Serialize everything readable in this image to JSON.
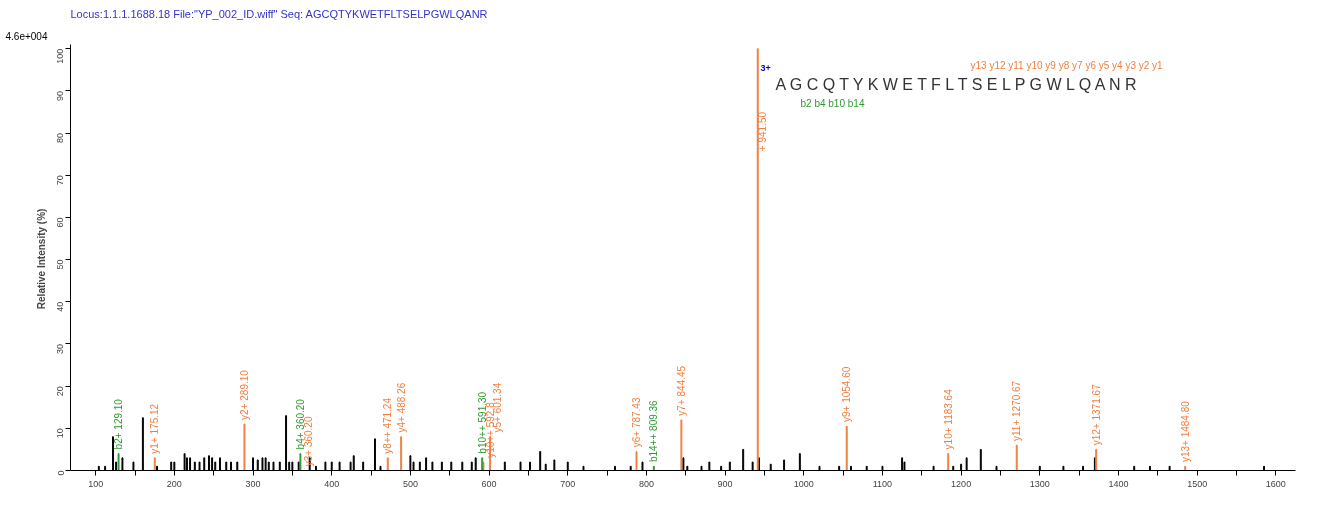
{
  "chart_data": {
    "type": "bar",
    "title": "Locus:1.1.1.1688.18 File:\"YP_002_ID.wiff\"   Seq: AGCQTYKWETFLTSELPGWLQANR",
    "ylabel": "Relative  Intensity (%)",
    "annotations": [
      "4.6e+004",
      "3+",
      "A G C Q T Y K W E T F L T S E L P G W L Q A N R",
      "y13 y12 y11 y10 y9 y8 y7 y6 y5 y4 y3 y2 y1",
      "b2 b4 b10 b14",
      {
        "text": "+ 941.50",
        "x": 941.5,
        "y": 85
      }
    ],
    "xlim": [
      68,
      1625
    ],
    "ylim": [
      0,
      101
    ],
    "xticks": [
      100,
      {
        "value": 150,
        "label": null
      },
      200,
      {
        "value": 250,
        "label": null
      },
      300,
      {
        "value": 350,
        "label": null
      },
      400,
      {
        "value": 450,
        "label": null
      },
      500,
      {
        "value": 550,
        "label": null
      },
      600,
      {
        "value": 650,
        "label": null
      },
      700,
      {
        "value": 750,
        "label": null
      },
      800,
      {
        "value": 850,
        "label": null
      },
      900,
      {
        "value": 950,
        "label": null
      },
      1000,
      {
        "value": 1050,
        "label": null
      },
      1100,
      {
        "value": 1150,
        "label": null
      },
      1200,
      {
        "value": 1250,
        "label": null
      },
      1300,
      {
        "value": 1350,
        "label": null
      },
      1400,
      {
        "value": 1450,
        "label": null
      },
      1500,
      {
        "value": 1550,
        "label": null
      },
      1600
    ],
    "yticks": [
      0,
      10,
      20,
      30,
      40,
      50,
      60,
      70,
      80,
      90,
      100
    ],
    "grid": false,
    "series": [
      {
        "color": "#000000",
        "x": [
          104,
          112,
          122,
          126,
          134,
          148,
          160,
          178,
          196,
          200,
          213,
          216,
          220,
          226,
          232,
          238,
          244,
          248,
          252,
          258,
          266,
          272,
          280,
          300,
          306,
          312,
          316,
          320,
          326,
          334,
          342,
          346,
          350,
          358,
          372,
          380,
          392,
          400,
          410,
          424,
          428,
          440,
          455,
          462,
          500,
          504,
          512,
          520,
          528,
          540,
          552,
          566,
          578,
          583,
          620,
          640,
          652,
          665,
          672,
          683,
          700,
          720,
          760,
          780,
          795,
          847,
          852,
          870,
          880,
          895,
          906,
          923,
          935,
          943,
          958,
          975,
          995,
          1020,
          1045,
          1060,
          1080,
          1100,
          1125,
          1128,
          1165,
          1190,
          1200,
          1207,
          1225,
          1245,
          1300,
          1330,
          1355,
          1370,
          1420,
          1440,
          1465,
          1585
        ],
        "values": [
          1,
          1,
          8,
          2,
          3,
          2,
          12.5,
          1,
          2,
          2,
          4,
          3,
          3,
          2,
          2,
          3,
          3.5,
          3,
          2,
          3,
          2,
          2,
          2,
          3,
          2.5,
          3,
          3,
          2,
          2,
          2,
          13,
          2,
          2,
          2,
          3,
          1,
          2,
          2,
          2,
          2,
          3.5,
          2,
          7.5,
          1,
          3.5,
          2,
          2,
          3,
          2,
          2,
          2,
          2,
          2,
          3,
          2,
          2,
          2,
          4.5,
          1.5,
          2.5,
          2,
          1,
          1,
          1,
          2,
          3,
          1,
          1,
          2,
          1,
          2,
          5,
          2,
          3,
          1.5,
          2.5,
          4,
          1,
          1,
          1,
          1,
          1,
          3,
          2,
          1,
          1,
          1.5,
          3,
          5,
          1,
          1,
          1,
          1,
          3,
          1,
          1,
          1,
          1
        ]
      },
      {
        "color": "#f07f3f",
        "x": [
          175.12,
          289.1,
          360.2,
          471.24,
          488.26,
          592.8,
          601.34,
          787.43,
          844.45,
          941.5,
          1054.6,
          1183.64,
          1270.67,
          1371.67,
          1484.8
        ],
        "values": [
          3,
          11,
          null,
          3,
          8,
          2,
          8,
          4.5,
          12,
          100,
          10.5,
          4,
          6,
          5,
          1
        ],
        "value_labels": [
          "y1+ 175.12",
          "y2+ 289.10",
          "y3+ 360.20",
          "y8++ 471.24",
          "y4+ 488.26",
          "y10++ 592.8",
          "y5+ 601.34",
          "y6+ 787.43",
          "y7+ 844.45",
          null,
          "y9+ 1054.60",
          "y10+ 1183.64",
          "y11+ 1270.67",
          "y12+ 1371.67",
          "y13+ 1484.80"
        ]
      },
      {
        "color": "#2e9a2e",
        "x": [
          129.1,
          360.2,
          591.3,
          809.36
        ],
        "values": [
          4,
          4,
          3,
          1
        ],
        "value_labels": [
          "b2+ 129.10",
          "b4+ 360.20",
          "b10++ 591.30",
          "b14++ 809.36"
        ]
      }
    ]
  }
}
